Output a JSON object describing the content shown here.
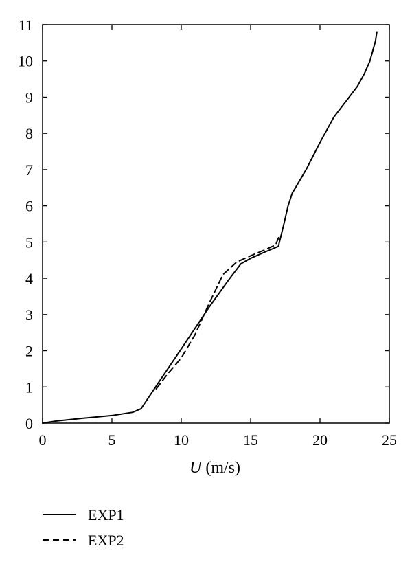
{
  "chart_data": {
    "type": "line",
    "title": "",
    "xlabel": {
      "var": "U",
      "unit": " (m/s)"
    },
    "ylabel": "",
    "xlim": [
      0,
      25
    ],
    "ylim": [
      0,
      11
    ],
    "xticks": [
      "0",
      "5",
      "10",
      "15",
      "20",
      "25"
    ],
    "yticks": [
      "0",
      "1",
      "2",
      "3",
      "4",
      "5",
      "6",
      "7",
      "8",
      "9",
      "10",
      "11"
    ],
    "grid": false,
    "legend_position": "bottom-left",
    "series": [
      {
        "name": "EXP1",
        "style": "solid",
        "color": "#000000",
        "points": [
          [
            0,
            0
          ],
          [
            1,
            0.06
          ],
          [
            3,
            0.14
          ],
          [
            5,
            0.21
          ],
          [
            6.5,
            0.3
          ],
          [
            7.1,
            0.4
          ],
          [
            8.5,
            1.2
          ],
          [
            10,
            2.05
          ],
          [
            12,
            3.2
          ],
          [
            13.5,
            4.0
          ],
          [
            14.3,
            4.4
          ],
          [
            15,
            4.55
          ],
          [
            16,
            4.72
          ],
          [
            17,
            4.88
          ],
          [
            17.4,
            5.5
          ],
          [
            17.7,
            6.0
          ],
          [
            18,
            6.35
          ],
          [
            19,
            7.0
          ],
          [
            20,
            7.75
          ],
          [
            21,
            8.45
          ],
          [
            22,
            8.95
          ],
          [
            22.7,
            9.3
          ],
          [
            23.2,
            9.65
          ],
          [
            23.6,
            10.0
          ],
          [
            24,
            10.55
          ],
          [
            24.1,
            10.8
          ]
        ]
      },
      {
        "name": "EXP2",
        "style": "dashed",
        "color": "#000000",
        "points": [
          [
            8.2,
            0.95
          ],
          [
            9,
            1.35
          ],
          [
            10,
            1.8
          ],
          [
            11,
            2.45
          ],
          [
            12,
            3.3
          ],
          [
            13,
            4.1
          ],
          [
            14,
            4.45
          ],
          [
            15,
            4.62
          ],
          [
            16,
            4.78
          ],
          [
            16.8,
            4.92
          ],
          [
            17.1,
            5.2
          ]
        ]
      }
    ]
  }
}
